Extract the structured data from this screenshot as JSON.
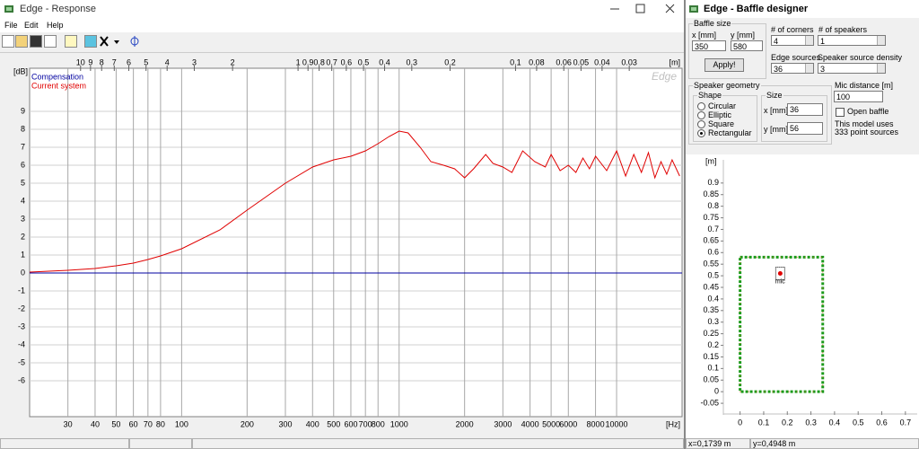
{
  "response_window": {
    "title": "Edge - Response",
    "menu": [
      "File",
      "Edit",
      "Help"
    ],
    "status": []
  },
  "baffle_window": {
    "title": "Edge - Baffle designer",
    "baffle_size": {
      "label": "Baffle size",
      "x_label": "x [mm]",
      "y_label": "y [mm]",
      "x": 350,
      "y": 580,
      "button": "Apply!"
    },
    "corners": {
      "label": "# of corners",
      "value": 4
    },
    "speakers": {
      "label": "# of speakers",
      "value": 1
    },
    "edge_sources": {
      "label": "Edge sources",
      "value": 36
    },
    "source_density": {
      "label": "Speaker source density",
      "value": 3
    },
    "geometry": {
      "label": "Speaker geometry",
      "shape_label": "Shape",
      "shapes": [
        "Circular",
        "Elliptic",
        "Square",
        "Rectangular"
      ],
      "selected": 3,
      "size_label": "Size",
      "x_label": "x [mm]",
      "y_label": "y [mm]",
      "x": 36,
      "y": 56
    },
    "mic_distance": {
      "label": "Mic distance [m]",
      "value": 100
    },
    "open_baffle": {
      "label": "Open baffle",
      "checked": false
    },
    "info": [
      "This model uses",
      "333 point sources"
    ],
    "status": [
      "x=0,1739 m",
      "y=0,4948 m"
    ]
  },
  "chart_data": [
    {
      "type": "line",
      "x_label": "[Hz]",
      "y_label": "[dB]",
      "x2_label": "[m]",
      "watermark": "Edge",
      "xscale": "log",
      "xlim": [
        20,
        20000
      ],
      "x2lim": [
        17.15,
        0.01715
      ],
      "ylim": [
        -8,
        11.4
      ],
      "xticks": [
        30,
        40,
        50,
        60,
        70,
        80,
        100,
        200,
        300,
        400,
        500,
        600,
        700,
        800,
        1000,
        2000,
        3000,
        4000,
        5000,
        6000,
        8000,
        10000
      ],
      "x2ticks": [
        10,
        9,
        8,
        7,
        6,
        5,
        4,
        3,
        2,
        1,
        0.9,
        0.8,
        0.7,
        0.6,
        0.5,
        0.4,
        0.3,
        0.2,
        0.1,
        0.08,
        0.06,
        0.05,
        0.04,
        0.03
      ],
      "yticks": [
        -6,
        -5,
        -4,
        -3,
        -2,
        -1,
        0,
        1,
        2,
        3,
        4,
        5,
        6,
        7,
        8,
        9
      ],
      "grid": true,
      "legend": "top-left",
      "series": [
        {
          "name": "Compensation",
          "color": "#0000a0",
          "x": [
            20,
            20000
          ],
          "values": [
            0,
            0
          ]
        },
        {
          "name": "Current system",
          "color": "#e00000",
          "x": [
            20,
            30,
            40,
            50,
            60,
            70,
            80,
            100,
            150,
            200,
            300,
            400,
            500,
            600,
            700,
            800,
            900,
            1000,
            1100,
            1250,
            1400,
            1600,
            1800,
            2000,
            2200,
            2500,
            2700,
            3000,
            3300,
            3700,
            4200,
            4700,
            5000,
            5500,
            6000,
            6500,
            7000,
            7500,
            8000,
            9000,
            10000,
            11000,
            12000,
            13000,
            14000,
            15000,
            16000,
            17000,
            18000,
            19500
          ],
          "values": [
            0.05,
            0.15,
            0.25,
            0.4,
            0.55,
            0.75,
            0.95,
            1.35,
            2.4,
            3.5,
            5.0,
            5.9,
            6.3,
            6.5,
            6.8,
            7.2,
            7.6,
            7.9,
            7.8,
            7.0,
            6.2,
            6.0,
            5.8,
            5.3,
            5.8,
            6.6,
            6.1,
            5.9,
            5.6,
            6.8,
            6.2,
            5.9,
            6.6,
            5.7,
            6.0,
            5.6,
            6.4,
            5.8,
            6.5,
            5.7,
            6.8,
            5.4,
            6.6,
            5.6,
            6.7,
            5.3,
            6.2,
            5.5,
            6.3,
            5.4
          ]
        }
      ]
    },
    {
      "type": "baffle",
      "y_label": "[m]",
      "xlim": [
        -0.2,
        0.75
      ],
      "ylim": [
        -0.1,
        1
      ],
      "xticks": [
        0,
        0.1,
        0.2,
        0.3,
        0.4,
        0.5,
        0.6,
        0.7
      ],
      "yticks": [
        -0.05,
        0,
        0.05,
        0.1,
        0.15,
        0.2,
        0.25,
        0.3,
        0.35,
        0.4,
        0.45,
        0.5,
        0.55,
        0.6,
        0.65,
        0.7,
        0.75,
        0.8,
        0.85,
        0.9
      ],
      "baffle": {
        "x": [
          0,
          0.35
        ],
        "y": [
          0,
          0.58
        ],
        "color": "#1a9a1a"
      },
      "speaker": {
        "x": [
          0.17
        ],
        "values": [
          0.51
        ],
        "color": "#e00000"
      },
      "annotation": "mic"
    }
  ]
}
